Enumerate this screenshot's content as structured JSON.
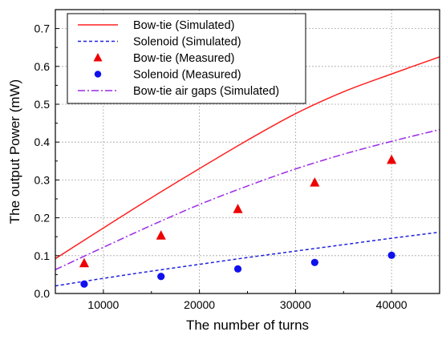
{
  "chart_data": {
    "type": "line",
    "title": "",
    "xlabel": "The number of turns",
    "ylabel": "The output Power (mW)",
    "xlim": [
      5000,
      45000
    ],
    "ylim": [
      0,
      0.75
    ],
    "xticks": [
      10000,
      20000,
      30000,
      40000
    ],
    "xtick_labels": [
      "10000",
      "20000",
      "30000",
      "40000"
    ],
    "yticks": [
      0.0,
      0.1,
      0.2,
      0.3,
      0.4,
      0.5,
      0.6,
      0.7
    ],
    "ytick_labels": [
      "0.0",
      "0.1",
      "0.2",
      "0.3",
      "0.4",
      "0.5",
      "0.6",
      "0.7"
    ],
    "grid": true,
    "legend_position": "top-left",
    "series": [
      {
        "name": "Bow-tie (Simulated)",
        "kind": "line",
        "style": "solid",
        "color": "#ff2020",
        "x": [
          5000,
          10000,
          15000,
          20000,
          25000,
          30000,
          35000,
          40000,
          45000
        ],
        "y": [
          0.092,
          0.173,
          0.253,
          0.33,
          0.405,
          0.475,
          0.533,
          0.58,
          0.625
        ]
      },
      {
        "name": "Solenoid (Simulated)",
        "kind": "line",
        "style": "dashed",
        "color": "#2020e0",
        "x": [
          5000,
          10000,
          15000,
          20000,
          25000,
          30000,
          35000,
          40000,
          45000
        ],
        "y": [
          0.02,
          0.04,
          0.059,
          0.077,
          0.095,
          0.112,
          0.129,
          0.146,
          0.162
        ]
      },
      {
        "name": "Bow-tie (Measured)",
        "kind": "scatter",
        "marker": "triangle",
        "color": "#ee0000",
        "x": [
          8000,
          16000,
          24000,
          32000,
          40000
        ],
        "y": [
          0.08,
          0.153,
          0.223,
          0.293,
          0.353
        ]
      },
      {
        "name": "Solenoid (Measured)",
        "kind": "scatter",
        "marker": "circle",
        "color": "#1010ee",
        "x": [
          8000,
          16000,
          24000,
          32000,
          40000
        ],
        "y": [
          0.025,
          0.045,
          0.065,
          0.082,
          0.101
        ]
      },
      {
        "name": "Bow-tie air gaps (Simulated)",
        "kind": "line",
        "style": "dashdot",
        "color": "#9c2ae6",
        "x": [
          5000,
          10000,
          15000,
          20000,
          25000,
          30000,
          35000,
          40000,
          45000
        ],
        "y": [
          0.063,
          0.122,
          0.18,
          0.235,
          0.284,
          0.329,
          0.368,
          0.402,
          0.433
        ]
      }
    ]
  }
}
